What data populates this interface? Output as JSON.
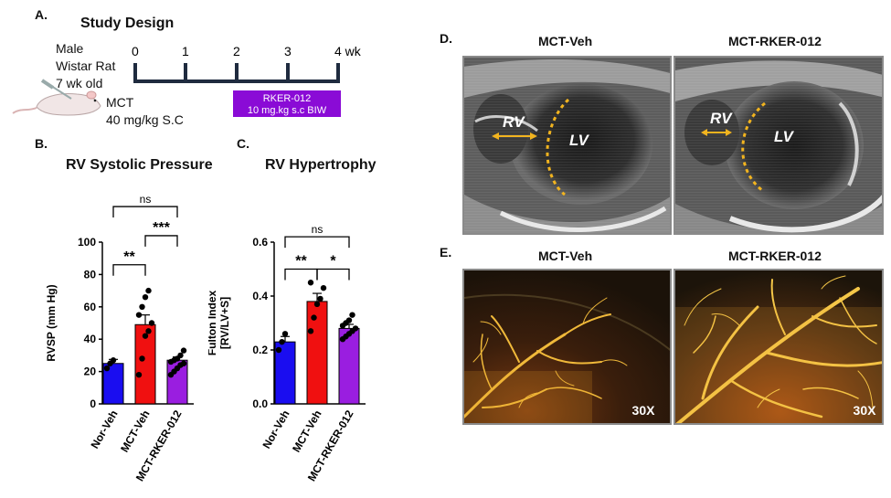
{
  "panel_a": {
    "label": "A.",
    "title": "Study Design",
    "animal": [
      "Male",
      "Wistar Rat",
      "7 wk old"
    ],
    "weeks": [
      "0",
      "1",
      "2",
      "3",
      "4 wk"
    ],
    "mct": [
      "MCT",
      "40 mg/kg S.C"
    ],
    "treatment": [
      "RKER-012",
      "10 mg.kg s.c BIW"
    ],
    "colors": {
      "treatment_bar": "#8a0bd6"
    }
  },
  "panel_b": {
    "label": "B.",
    "title": "RV Systolic Pressure"
  },
  "panel_c": {
    "label": "C.",
    "title": "RV Hypertrophy"
  },
  "panel_d": {
    "label": "D.",
    "left_title": "MCT-Veh",
    "right_title": "MCT-RKER-012",
    "rv": "RV",
    "lv": "LV"
  },
  "panel_e": {
    "label": "E.",
    "left_title": "MCT-Veh",
    "right_title": "MCT-RKER-012",
    "magnification": "30X"
  },
  "chart_data": [
    {
      "type": "bar",
      "title": "RV Systolic Pressure",
      "ylabel": "RVSP (mm Hg)",
      "ylim": [
        0,
        100
      ],
      "yticks": [
        "0",
        "20",
        "40",
        "60",
        "80",
        "100"
      ],
      "categories": [
        "Nor-Veh",
        "MCT-Veh",
        "MCT-RKER-012"
      ],
      "values": [
        25,
        49,
        27
      ],
      "errors": [
        2.5,
        6,
        2
      ],
      "colors": [
        "#1a0df0",
        "#f01010",
        "#9a1ee0"
      ],
      "points": [
        [
          22,
          25,
          27
        ],
        [
          18,
          28,
          42,
          45,
          50,
          55,
          60,
          66,
          70
        ],
        [
          18,
          20,
          22,
          24,
          25,
          26,
          27,
          28,
          30,
          33
        ]
      ],
      "significance": [
        {
          "from": 0,
          "to": 1,
          "label": "**",
          "level": 86
        },
        {
          "from": 1,
          "to": 2,
          "label": "***",
          "level": 104
        },
        {
          "from": 0,
          "to": 2,
          "label": "ns",
          "level": 122
        }
      ]
    },
    {
      "type": "bar",
      "title": "RV Hypertrophy",
      "ylabel": "Fulton Index [RV/LV+S]",
      "ylim": [
        0,
        0.6
      ],
      "yticks": [
        "0.0",
        "0.2",
        "0.4",
        "0.6"
      ],
      "categories": [
        "Nor-Veh",
        "MCT-Veh",
        "MCT-RKER-012"
      ],
      "values": [
        0.23,
        0.38,
        0.28
      ],
      "errors": [
        0.02,
        0.03,
        0.015
      ],
      "colors": [
        "#1a0df0",
        "#f01010",
        "#9a1ee0"
      ],
      "points": [
        [
          0.2,
          0.23,
          0.26
        ],
        [
          0.27,
          0.32,
          0.37,
          0.39,
          0.43,
          0.45
        ],
        [
          0.24,
          0.25,
          0.26,
          0.27,
          0.28,
          0.29,
          0.3,
          0.31,
          0.33
        ]
      ],
      "significance": [
        {
          "from": 0,
          "to": 1,
          "label": "**",
          "level": 0.5
        },
        {
          "from": 1,
          "to": 2,
          "label": "*",
          "level": 0.5
        },
        {
          "from": 0,
          "to": 2,
          "label": "ns",
          "level": 0.62
        }
      ]
    }
  ]
}
